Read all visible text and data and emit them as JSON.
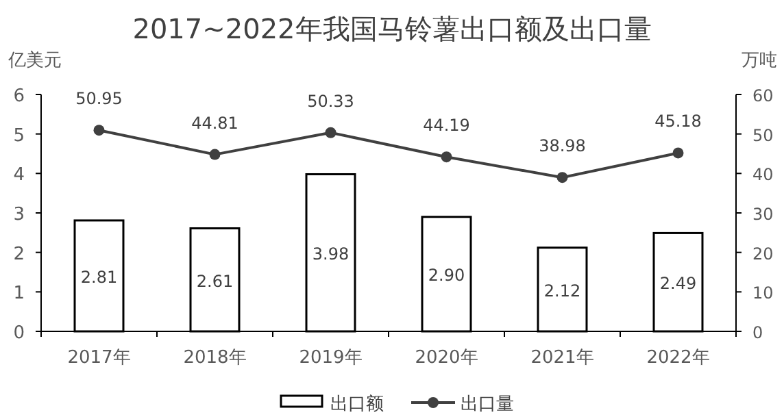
{
  "chart_data": {
    "type": "bar",
    "title": "2017~2022年我国马铃薯出口额及出口量",
    "ylabel": "亿美元",
    "y2label": "万吨",
    "categories": [
      "2017年",
      "2018年",
      "2019年",
      "2020年",
      "2021年",
      "2022年"
    ],
    "series": [
      {
        "name": "出口额",
        "color": "#ffffff",
        "values": [
          2.81,
          2.61,
          3.98,
          2.9,
          2.12,
          2.49
        ],
        "value_labels": [
          "2.81",
          "2.61",
          "3.98",
          "2.90",
          "2.12",
          "2.49"
        ]
      },
      {
        "name": "出口量",
        "type": "line",
        "axis": "y2",
        "color": "#404040",
        "marker": "circle",
        "values": [
          50.95,
          44.81,
          50.33,
          44.19,
          38.98,
          45.18
        ],
        "value_labels": [
          "50.95",
          "44.81",
          "50.33",
          "44.19",
          "38.98",
          "45.18"
        ]
      }
    ],
    "ylim": [
      0,
      6
    ],
    "yticks": [
      0,
      1,
      2,
      3,
      4,
      5,
      6
    ],
    "y2lim": [
      0,
      60
    ],
    "y2ticks": [
      0,
      10,
      20,
      30,
      40,
      50,
      60
    ],
    "legend": "bottom",
    "grid": false
  }
}
